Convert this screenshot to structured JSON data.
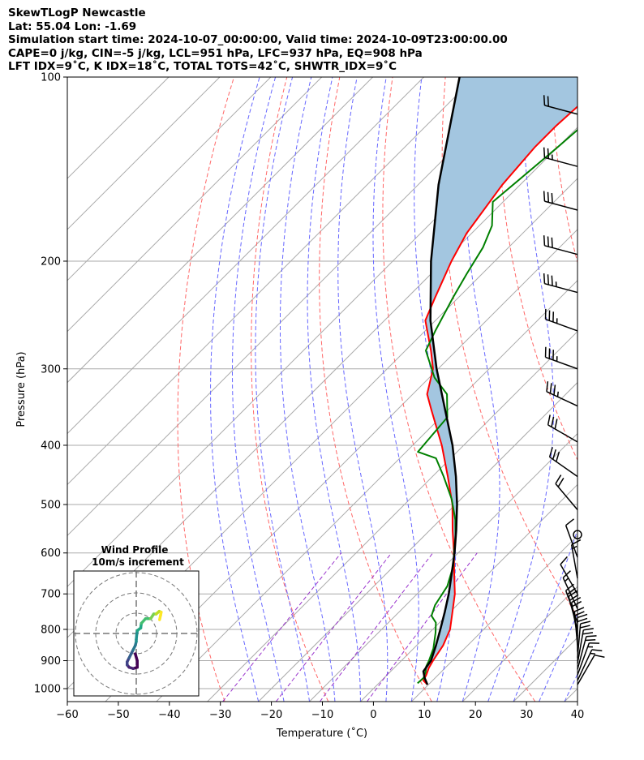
{
  "header": {
    "title": "SkewTLogP Newcastle",
    "location": "Lat: 55.04   Lon: -1.69",
    "times": "Simulation start time: 2024-10-07_00:00:00, Valid time: 2024-10-09T23:00:00.00",
    "params": "CAPE=0 j/kg, CIN=-5 j/kg, LCL=951 hPa, LFC=937 hPa, EQ=908 hPa",
    "indices": "LFT IDX=9˚C, K IDX=18˚C, TOTAL TOTS=42˚C, SHWTR_IDX=9˚C"
  },
  "chart_data": {
    "type": "line",
    "xlabel": "Temperature (˚C)",
    "ylabel": "Pressure (hPa)",
    "xlim": [
      -60,
      40
    ],
    "ylim": [
      1050,
      100
    ],
    "y_scale": "log",
    "xticks": [
      -60,
      -50,
      -40,
      -30,
      -20,
      -10,
      0,
      10,
      20,
      30,
      40
    ],
    "yticks": [
      100,
      200,
      300,
      400,
      500,
      600,
      700,
      800,
      900,
      1000
    ],
    "grid": true,
    "colors": {
      "temperature": "#ff0000",
      "dewpoint": "#008000",
      "parcel": "#000000",
      "shading": "#a3c6e0",
      "dry_adiabats": "#ff6666",
      "moist_adiabats": "#6666ff",
      "mixing_ratio": "#9933cc",
      "isotherms": "#aaaaaa"
    },
    "series": [
      {
        "key": "temperature",
        "pressure": [
          985,
          970,
          950,
          925,
          900,
          850,
          800,
          750,
          700,
          650,
          600,
          550,
          500,
          450,
          400,
          350,
          330,
          300,
          280,
          250,
          230,
          200,
          180,
          150,
          130,
          120,
          110,
          100
        ],
        "values": [
          9.8,
          8.2,
          7.7,
          6.8,
          6.2,
          5.2,
          3.4,
          0.5,
          -2.6,
          -6.6,
          -10.8,
          -15.6,
          -20.6,
          -27.0,
          -34.3,
          -43.3,
          -47.2,
          -51.0,
          -55.0,
          -62.0,
          -64.5,
          -68.5,
          -71.0,
          -73.5,
          -74.5,
          -74.5,
          -74.0,
          -73.5
        ]
      },
      {
        "key": "dewpoint",
        "pressure": [
          980,
          960,
          940,
          920,
          900,
          860,
          810,
          780,
          760,
          730,
          680,
          630,
          600,
          560,
          530,
          490,
          450,
          420,
          410,
          360,
          330,
          310,
          280,
          260,
          230,
          210,
          190,
          175,
          160,
          130,
          100
        ],
        "values": [
          7.6,
          7.7,
          7.0,
          6.0,
          5.4,
          3.9,
          1.2,
          -0.7,
          -2.9,
          -4.3,
          -5.6,
          -8.4,
          -10.8,
          -14.1,
          -17.0,
          -21.8,
          -27.8,
          -32.9,
          -37.7,
          -38.7,
          -43.3,
          -49.0,
          -56.0,
          -58.0,
          -61.0,
          -63.0,
          -65.0,
          -67.5,
          -72.0,
          -70.0,
          -68.0
        ]
      },
      {
        "key": "parcel",
        "pressure": [
          985,
          960,
          937,
          900,
          850,
          800,
          750,
          700,
          650,
          600,
          550,
          500,
          450,
          400,
          350,
          300,
          250,
          200,
          150,
          100
        ],
        "values": [
          9.8,
          7.9,
          6.4,
          5.8,
          3.8,
          1.5,
          -1.0,
          -3.8,
          -7.1,
          -10.7,
          -14.9,
          -19.7,
          -25.4,
          -32.2,
          -40.6,
          -50.3,
          -61.0,
          -72.5,
          -86.0,
          -103.0
        ]
      }
    ],
    "wind_barbs": {
      "pressure": [
        115,
        140,
        165,
        195,
        225,
        260,
        300,
        345,
        395,
        450,
        510,
        560,
        610,
        660,
        700,
        740,
        780,
        800,
        820,
        850,
        870,
        890,
        910,
        930,
        950,
        970,
        985
      ],
      "direction_deg": [
        285,
        285,
        285,
        285,
        285,
        290,
        290,
        295,
        300,
        305,
        320,
        0,
        340,
        350,
        330,
        335,
        340,
        345,
        350,
        355,
        0,
        5,
        10,
        15,
        20,
        25,
        30
      ],
      "speed_kt": [
        22,
        25,
        28,
        30,
        33,
        35,
        35,
        33,
        30,
        28,
        20,
        0,
        10,
        15,
        12,
        15,
        18,
        20,
        22,
        22,
        20,
        20,
        18,
        18,
        15,
        15,
        12
      ]
    },
    "hodograph": {
      "title": "Wind Profile",
      "subtitle": "10m/s increment",
      "u": [
        -0.5,
        0.5,
        0.5,
        -1.5,
        -3.5,
        -4.5,
        -4.5,
        -3.5,
        -2.5,
        -1.5,
        -0.5,
        0.0,
        0.0,
        0.3,
        0.6,
        2.2,
        2.5,
        4.6,
        7.1,
        8.6,
        9.8,
        11.3,
        12.3,
        12.0,
        11.5
      ],
      "v": [
        -10.0,
        -13.5,
        -16.7,
        -17.3,
        -16.7,
        -15.5,
        -14.0,
        -12.0,
        -10.0,
        -8.0,
        -6.0,
        -4.0,
        -3.0,
        0.0,
        1.5,
        2.7,
        5.0,
        7.3,
        7.3,
        9.6,
        9.6,
        10.9,
        10.5,
        9.0,
        6.8
      ]
    }
  }
}
